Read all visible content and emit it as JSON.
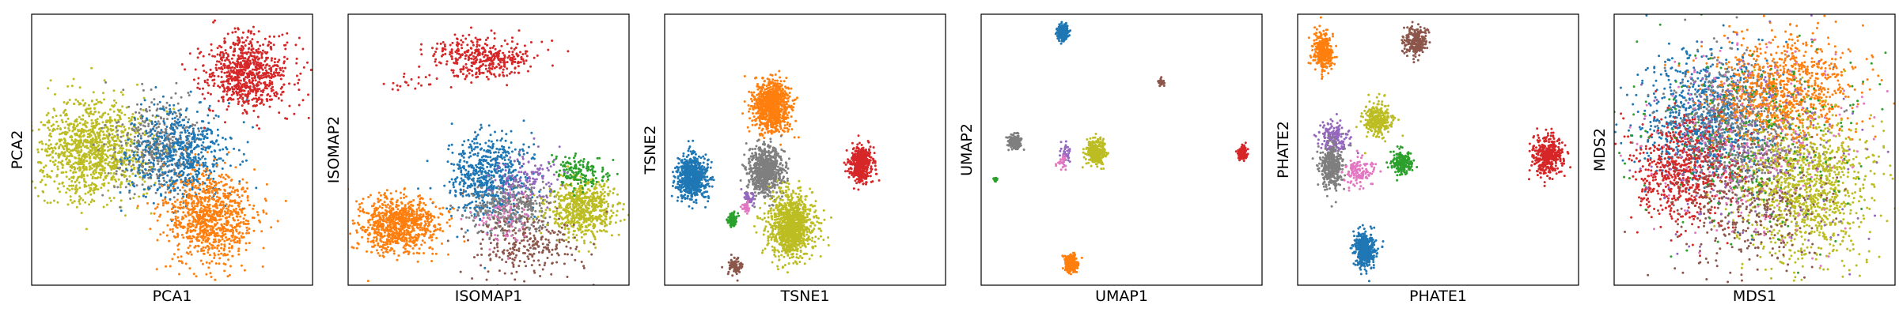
{
  "colors": [
    "#1f77b4",
    "#ff7f0e",
    "#2ca02c",
    "#d62728",
    "#9467bd",
    "#8c564b",
    "#e377c2",
    "#7f7f7f",
    "#bcbd22"
  ],
  "chart_data": [
    {
      "type": "scatter",
      "xlabel": "PCA1",
      "ylabel": "PCA2",
      "xlim": [
        0,
        100
      ],
      "ylim": [
        0,
        100
      ],
      "ticks": false,
      "grid": false,
      "clusters": [
        {
          "color_index": 8,
          "cx": 22,
          "cy": 50,
          "sx": 10,
          "sy": 9,
          "n": 1100
        },
        {
          "color_index": 7,
          "cx": 45,
          "cy": 52,
          "sx": 8,
          "sy": 9,
          "n": 420
        },
        {
          "color_index": 0,
          "cx": 53,
          "cy": 48,
          "sx": 9,
          "sy": 9,
          "n": 620
        },
        {
          "color_index": 3,
          "cx": 77,
          "cy": 78,
          "sx": 8,
          "sy": 7,
          "n": 750
        },
        {
          "color_index": 1,
          "cx": 64,
          "cy": 25,
          "sx": 8,
          "sy": 8,
          "n": 900
        }
      ]
    },
    {
      "type": "scatter",
      "xlabel": "ISOMAP1",
      "ylabel": "ISOMAP2",
      "xlim": [
        0,
        100
      ],
      "ylim": [
        0,
        100
      ],
      "ticks": false,
      "grid": false,
      "clusters": [
        {
          "color_index": 3,
          "cx": 48,
          "cy": 84,
          "sx": 9,
          "sy": 4,
          "n": 380
        },
        {
          "color_index": 3,
          "cx": 22,
          "cy": 74,
          "sx": 5,
          "sy": 2,
          "n": 20
        },
        {
          "color_index": 0,
          "cx": 50,
          "cy": 40,
          "sx": 7,
          "sy": 8,
          "n": 650
        },
        {
          "color_index": 7,
          "cx": 58,
          "cy": 28,
          "sx": 7,
          "sy": 5,
          "n": 350
        },
        {
          "color_index": 8,
          "cx": 83,
          "cy": 28,
          "sx": 6,
          "sy": 5,
          "n": 650
        },
        {
          "color_index": 2,
          "cx": 82,
          "cy": 42,
          "sx": 5,
          "sy": 3,
          "n": 160
        },
        {
          "color_index": 5,
          "cx": 63,
          "cy": 15,
          "sx": 10,
          "sy": 6,
          "n": 260
        },
        {
          "color_index": 4,
          "cx": 65,
          "cy": 40,
          "sx": 6,
          "sy": 5,
          "n": 120
        },
        {
          "color_index": 6,
          "cx": 56,
          "cy": 24,
          "sx": 5,
          "sy": 5,
          "n": 70
        },
        {
          "color_index": 1,
          "cx": 18,
          "cy": 22,
          "sx": 7,
          "sy": 5,
          "n": 850
        }
      ]
    },
    {
      "type": "scatter",
      "xlabel": "TSNE1",
      "ylabel": "TSNE2",
      "xlim": [
        0,
        100
      ],
      "ylim": [
        0,
        100
      ],
      "ticks": false,
      "grid": false,
      "clusters": [
        {
          "color_index": 1,
          "cx": 38,
          "cy": 66,
          "sx": 3.2,
          "sy": 4.6,
          "n": 900
        },
        {
          "color_index": 0,
          "cx": 10,
          "cy": 40,
          "sx": 2.7,
          "sy": 3.8,
          "n": 700
        },
        {
          "color_index": 7,
          "cx": 36,
          "cy": 42,
          "sx": 3.0,
          "sy": 4.3,
          "n": 750
        },
        {
          "color_index": 3,
          "cx": 70,
          "cy": 45,
          "sx": 2.0,
          "sy": 3.2,
          "n": 450
        },
        {
          "color_index": 8,
          "cx": 45,
          "cy": 22,
          "sx": 4.0,
          "sy": 5.6,
          "n": 1100
        },
        {
          "color_index": 2,
          "cx": 24,
          "cy": 24,
          "sx": 0.9,
          "sy": 1.4,
          "n": 70
        },
        {
          "color_index": 5,
          "cx": 25,
          "cy": 7,
          "sx": 1.2,
          "sy": 1.6,
          "n": 90
        },
        {
          "color_index": 4,
          "cx": 30,
          "cy": 32,
          "sx": 0.9,
          "sy": 1.2,
          "n": 45
        },
        {
          "color_index": 6,
          "cx": 29,
          "cy": 29,
          "sx": 0.7,
          "sy": 1.0,
          "n": 35
        }
      ]
    },
    {
      "type": "scatter",
      "xlabel": "UMAP1",
      "ylabel": "UMAP2",
      "xlim": [
        0,
        100
      ],
      "ylim": [
        0,
        100
      ],
      "ticks": false,
      "grid": false,
      "clusters": [
        {
          "color_index": 0,
          "cx": 29,
          "cy": 93,
          "sx": 1.0,
          "sy": 1.5,
          "n": 260
        },
        {
          "color_index": 5,
          "cx": 64,
          "cy": 75,
          "sx": 0.5,
          "sy": 0.7,
          "n": 40
        },
        {
          "color_index": 7,
          "cx": 12,
          "cy": 53,
          "sx": 1.2,
          "sy": 1.6,
          "n": 170
        },
        {
          "color_index": 8,
          "cx": 41,
          "cy": 49,
          "sx": 1.6,
          "sy": 2.2,
          "n": 320
        },
        {
          "color_index": 4,
          "cx": 30,
          "cy": 49,
          "sx": 1.0,
          "sy": 2.0,
          "n": 35
        },
        {
          "color_index": 6,
          "cx": 29,
          "cy": 45,
          "sx": 0.8,
          "sy": 1.2,
          "n": 25
        },
        {
          "color_index": 3,
          "cx": 93,
          "cy": 49,
          "sx": 0.9,
          "sy": 1.2,
          "n": 130
        },
        {
          "color_index": 2,
          "cx": 5,
          "cy": 39,
          "sx": 0.4,
          "sy": 0.6,
          "n": 18
        },
        {
          "color_index": 1,
          "cx": 32,
          "cy": 8,
          "sx": 1.2,
          "sy": 1.6,
          "n": 260
        }
      ]
    },
    {
      "type": "scatter",
      "xlabel": "PHATE1",
      "ylabel": "PHATE2",
      "xlim": [
        0,
        100
      ],
      "ylim": [
        0,
        100
      ],
      "ticks": false,
      "grid": false,
      "clusters": [
        {
          "color_index": 1,
          "cx": 9,
          "cy": 86,
          "sx": 1.6,
          "sy": 3.4,
          "n": 350
        },
        {
          "color_index": 5,
          "cx": 42,
          "cy": 90,
          "sx": 2.0,
          "sy": 2.6,
          "n": 260
        },
        {
          "color_index": 8,
          "cx": 29,
          "cy": 61,
          "sx": 2.4,
          "sy": 3.0,
          "n": 300
        },
        {
          "color_index": 4,
          "cx": 13,
          "cy": 54,
          "sx": 2.5,
          "sy": 3.0,
          "n": 180
        },
        {
          "color_index": 7,
          "cx": 12,
          "cy": 44,
          "sx": 2.0,
          "sy": 4.0,
          "n": 380
        },
        {
          "color_index": 6,
          "cx": 22,
          "cy": 42,
          "sx": 3.0,
          "sy": 2.6,
          "n": 130
        },
        {
          "color_index": 2,
          "cx": 37,
          "cy": 45,
          "sx": 1.8,
          "sy": 2.2,
          "n": 230
        },
        {
          "color_index": 3,
          "cx": 89,
          "cy": 48,
          "sx": 2.8,
          "sy": 3.6,
          "n": 420
        },
        {
          "color_index": 0,
          "cx": 24,
          "cy": 13,
          "sx": 1.9,
          "sy": 3.4,
          "n": 420
        }
      ]
    },
    {
      "type": "scatter",
      "xlabel": "MDS1",
      "ylabel": "MDS2",
      "xlim": [
        0,
        100
      ],
      "ylim": [
        0,
        100
      ],
      "ticks": false,
      "grid": false,
      "clusters": [
        {
          "color_index": 0,
          "cx": 32,
          "cy": 62,
          "sx": 11,
          "sy": 12,
          "n": 850
        },
        {
          "color_index": 7,
          "cx": 45,
          "cy": 58,
          "sx": 12,
          "sy": 13,
          "n": 750
        },
        {
          "color_index": 1,
          "cx": 61,
          "cy": 72,
          "sx": 12,
          "sy": 10,
          "n": 900
        },
        {
          "color_index": 3,
          "cx": 24,
          "cy": 42,
          "sx": 9,
          "sy": 10,
          "n": 650
        },
        {
          "color_index": 8,
          "cx": 69,
          "cy": 36,
          "sx": 12,
          "sy": 13,
          "n": 1100
        },
        {
          "color_index": 5,
          "cx": 48,
          "cy": 30,
          "sx": 14,
          "sy": 13,
          "n": 380
        },
        {
          "color_index": 2,
          "cx": 50,
          "cy": 52,
          "sx": 20,
          "sy": 20,
          "n": 260
        },
        {
          "color_index": 4,
          "cx": 50,
          "cy": 52,
          "sx": 20,
          "sy": 20,
          "n": 230
        },
        {
          "color_index": 6,
          "cx": 50,
          "cy": 52,
          "sx": 20,
          "sy": 20,
          "n": 200
        }
      ]
    }
  ]
}
